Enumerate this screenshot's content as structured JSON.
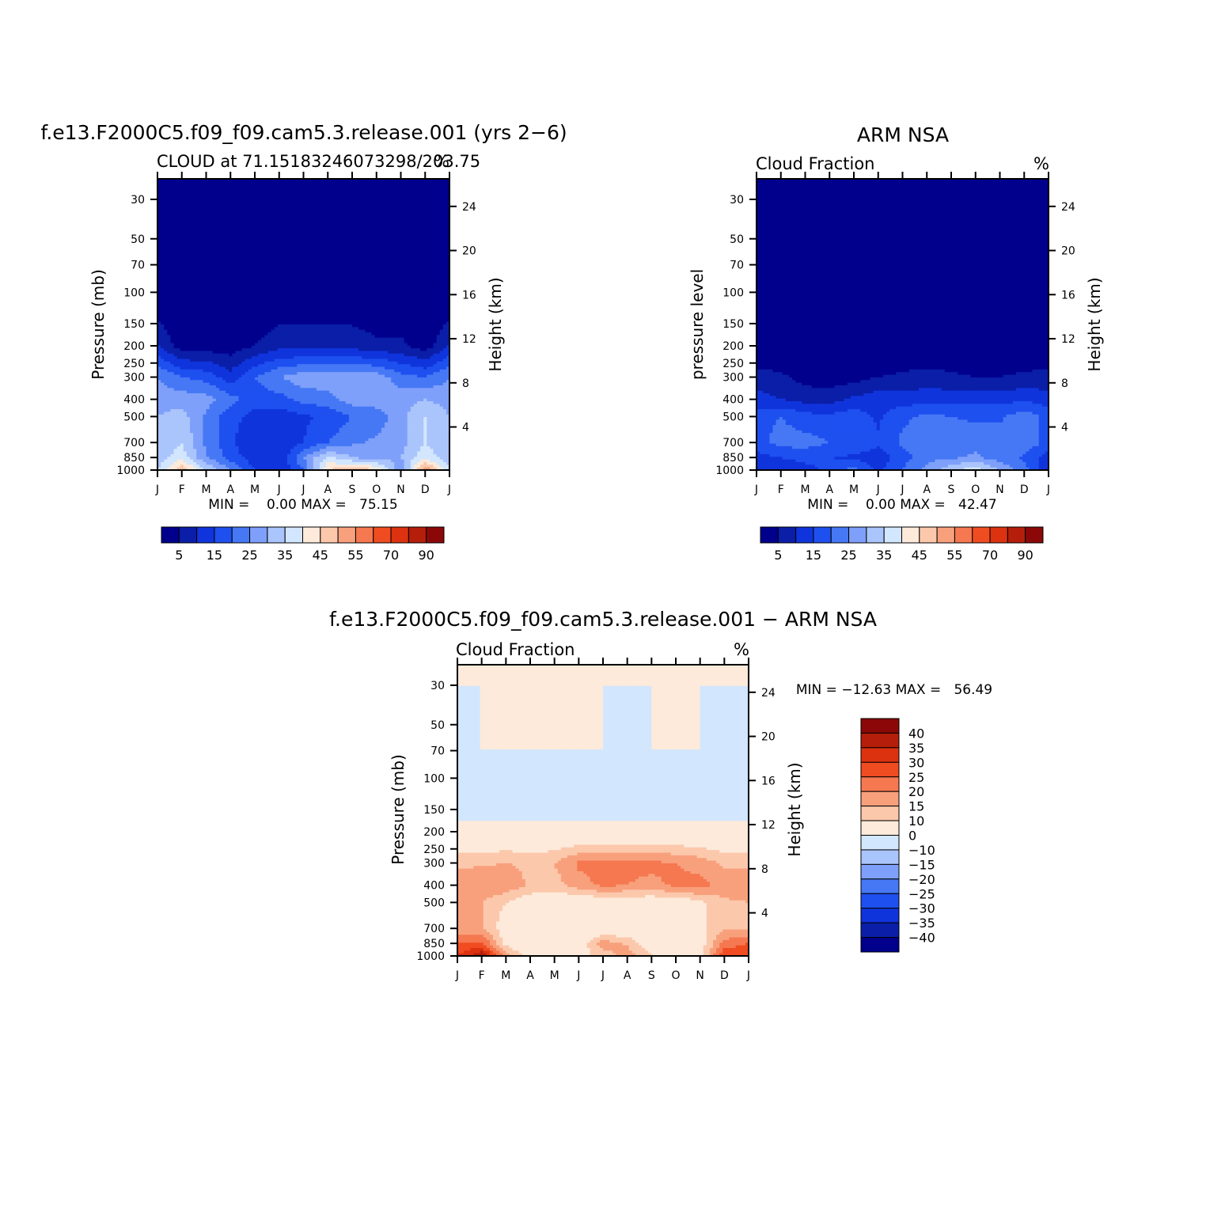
{
  "panels": [
    {
      "id": "model",
      "title": "f.e13.F2000C5.f09_f09.cam5.3.release.001 (yrs 2−6)",
      "left_string": "CLOUD at 71.15183246073298/203.75",
      "right_string": "%",
      "ylabel_left": "Pressure (mb)",
      "ylabel_right": "Height (km)",
      "stats": "MIN =    0.00 MAX =   75.15"
    },
    {
      "id": "obs",
      "title": "ARM NSA",
      "left_string": "Cloud Fraction",
      "right_string": "%",
      "ylabel_left": "pressure level",
      "ylabel_right": "Height (km)",
      "stats": "MIN =    0.00 MAX =   42.47"
    },
    {
      "id": "diff",
      "title": "f.e13.F2000C5.f09_f09.cam5.3.release.001 − ARM NSA",
      "left_string": "Cloud Fraction",
      "right_string": "%",
      "ylabel_left": "Pressure (mb)",
      "ylabel_right": "Height (km)",
      "stats": "MIN = −12.63 MAX =   56.49"
    }
  ],
  "axes": {
    "months": [
      "J",
      "F",
      "M",
      "A",
      "M",
      "J",
      "J",
      "A",
      "S",
      "O",
      "N",
      "D",
      "J"
    ],
    "pressure_ticks": [
      30,
      50,
      70,
      100,
      150,
      200,
      250,
      300,
      400,
      500,
      700,
      850,
      1000
    ],
    "height_ticks": [
      4,
      8,
      12,
      16,
      20,
      24
    ]
  },
  "colorbars": {
    "abs_labels": [
      "5",
      "15",
      "25",
      "35",
      "45",
      "55",
      "70",
      "90"
    ],
    "abs_colors": [
      "#00008c",
      "#0a1ea8",
      "#1034dc",
      "#1e50f0",
      "#4678f5",
      "#7ea0fa",
      "#aac4fc",
      "#d2e6fe",
      "#fdeada",
      "#fcc8ac",
      "#f8a07c",
      "#f57850",
      "#f04c21",
      "#dc3210",
      "#b41e0a",
      "#8c0808"
    ],
    "diff_labels": [
      "40",
      "35",
      "30",
      "25",
      "20",
      "15",
      "10",
      "0",
      "−10",
      "−15",
      "−20",
      "−25",
      "−30",
      "−35",
      "−40"
    ],
    "diff_colors": [
      "#8c0808",
      "#b41e0a",
      "#dc3210",
      "#f04c21",
      "#f57850",
      "#f8a07c",
      "#fcc8ac",
      "#fdeada",
      "#d2e6fe",
      "#aac4fc",
      "#7ea0fa",
      "#4678f5",
      "#1e50f0",
      "#1034dc",
      "#0a1ea8",
      "#00008c"
    ]
  },
  "chart_data": [
    {
      "type": "heatmap",
      "panel": "model",
      "title": "f.e13.F2000C5.f09_f09.cam5.3.release.001 (yrs 2−6)",
      "x": [
        "J",
        "F",
        "M",
        "A",
        "M",
        "J",
        "J",
        "A",
        "S",
        "O",
        "N",
        "D",
        "J"
      ],
      "y_pressure_mb": [
        30,
        100,
        200,
        300,
        400,
        500,
        700,
        850,
        1000
      ],
      "values_pct": [
        [
          0,
          0,
          0,
          0,
          0,
          0,
          0,
          0,
          0,
          0,
          0,
          0,
          0
        ],
        [
          0,
          0,
          0,
          0,
          0,
          0,
          0,
          0,
          0,
          0,
          0,
          0,
          0
        ],
        [
          10,
          2,
          2,
          2,
          5,
          8,
          8,
          8,
          8,
          6,
          6,
          2,
          10
        ],
        [
          25,
          20,
          18,
          12,
          20,
          25,
          28,
          28,
          28,
          28,
          22,
          20,
          25
        ],
        [
          28,
          28,
          27,
          22,
          17,
          18,
          22,
          23,
          28,
          28,
          28,
          30,
          28
        ],
        [
          30,
          32,
          24,
          17,
          13,
          12,
          14,
          16,
          20,
          22,
          28,
          35,
          30
        ],
        [
          30,
          35,
          24,
          16,
          10,
          10,
          15,
          20,
          24,
          26,
          28,
          35,
          30
        ],
        [
          32,
          38,
          25,
          18,
          12,
          10,
          25,
          36,
          30,
          27,
          30,
          38,
          32
        ],
        [
          35,
          50,
          35,
          25,
          15,
          10,
          20,
          45,
          50,
          45,
          25,
          55,
          35
        ]
      ],
      "legend_levels": [
        5,
        10,
        15,
        20,
        25,
        30,
        35,
        40,
        45,
        50,
        55,
        60,
        70,
        80,
        90
      ]
    },
    {
      "type": "heatmap",
      "panel": "obs",
      "title": "ARM NSA",
      "x": [
        "J",
        "F",
        "M",
        "A",
        "M",
        "J",
        "J",
        "A",
        "S",
        "O",
        "N",
        "D",
        "J"
      ],
      "y_pressure_mb": [
        30,
        100,
        200,
        300,
        400,
        500,
        700,
        850,
        1000
      ],
      "values_pct": [
        [
          0,
          0,
          0,
          0,
          0,
          0,
          0,
          0,
          0,
          0,
          0,
          0,
          0
        ],
        [
          0,
          0,
          0,
          0,
          0,
          0,
          0,
          0,
          0,
          0,
          0,
          0,
          0
        ],
        [
          0,
          0,
          0,
          0,
          0,
          0,
          0,
          0,
          0,
          0,
          0,
          0,
          0
        ],
        [
          7,
          6,
          3,
          2,
          3,
          5,
          6,
          7,
          6,
          5,
          5,
          6,
          7
        ],
        [
          12,
          10,
          8,
          8,
          11,
          13,
          12,
          13,
          13,
          13,
          13,
          14,
          12
        ],
        [
          18,
          20,
          17,
          16,
          18,
          14,
          19,
          21,
          20,
          19,
          19,
          23,
          18
        ],
        [
          18,
          22,
          22,
          20,
          20,
          16,
          21,
          23,
          24,
          23,
          23,
          24,
          18
        ],
        [
          13,
          15,
          17,
          15,
          14,
          12,
          18,
          23,
          24,
          26,
          22,
          19,
          13
        ],
        [
          10,
          10,
          13,
          17,
          22,
          14,
          20,
          27,
          34,
          38,
          30,
          22,
          10
        ]
      ],
      "legend_levels": [
        5,
        10,
        15,
        20,
        25,
        30,
        35,
        40,
        45,
        50,
        55,
        60,
        70,
        80,
        90
      ]
    },
    {
      "type": "heatmap",
      "panel": "diff",
      "title": "f.e13.F2000C5.f09_f09.cam5.3.release.001 − ARM NSA",
      "x": [
        "J",
        "F",
        "M",
        "A",
        "M",
        "J",
        "J",
        "A",
        "S",
        "O",
        "N",
        "D",
        "J"
      ],
      "y_pressure_mb": [
        30,
        70,
        100,
        150,
        200,
        300,
        400,
        500,
        700,
        850,
        1000
      ],
      "values_pct": [
        [
          0,
          0,
          0,
          0,
          0,
          0,
          0,
          0,
          0,
          0,
          0,
          0,
          0
        ],
        [
          -2,
          0,
          0,
          0,
          0,
          0,
          0,
          -2,
          0,
          0,
          0,
          -2,
          -2
        ],
        [
          -2,
          -2,
          -2,
          -2,
          -2,
          -2,
          -2,
          -2,
          -2,
          -2,
          -2,
          -2,
          -2
        ],
        [
          -2,
          -2,
          -2,
          -2,
          -2,
          -2,
          -2,
          -2,
          -2,
          -2,
          -2,
          -2,
          -2
        ],
        [
          2,
          2,
          2,
          2,
          2,
          2,
          2,
          2,
          2,
          2,
          2,
          2,
          2
        ],
        [
          14,
          14,
          15,
          14,
          15,
          21,
          22,
          21,
          21,
          20,
          18,
          14,
          14
        ],
        [
          18,
          20,
          19,
          14,
          13,
          18,
          21,
          20,
          19,
          21,
          22,
          18,
          18
        ],
        [
          15,
          15,
          10,
          6,
          5,
          4,
          5,
          5,
          5,
          5,
          9,
          14,
          15
        ],
        [
          15,
          16,
          6,
          3,
          2,
          3,
          4,
          4,
          5,
          6,
          8,
          14,
          15
        ],
        [
          25,
          26,
          8,
          3,
          0,
          5,
          18,
          14,
          5,
          3,
          6,
          22,
          25
        ],
        [
          30,
          40,
          18,
          6,
          2,
          8,
          12,
          18,
          10,
          6,
          8,
          30,
          30
        ]
      ],
      "legend_levels": [
        -40,
        -35,
        -30,
        -25,
        -20,
        -15,
        -10,
        0,
        10,
        15,
        20,
        25,
        30,
        35,
        40
      ]
    }
  ]
}
